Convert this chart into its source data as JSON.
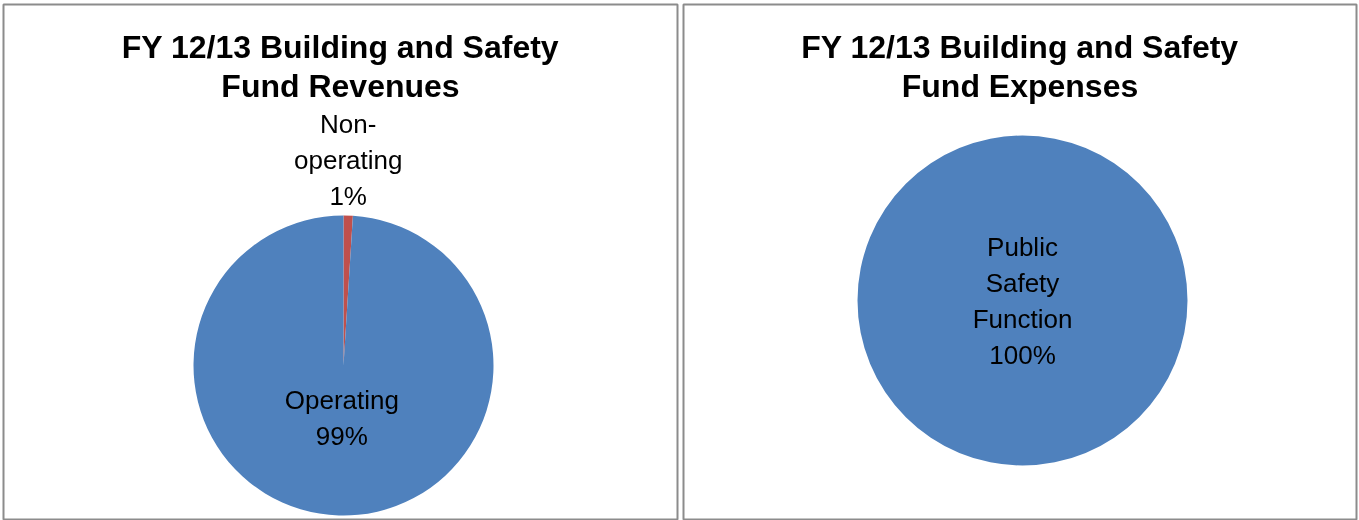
{
  "chart_data": [
    {
      "type": "pie",
      "title": "FY 12/13 Building and Safety Fund Revenues",
      "categories": [
        "Non-operating",
        "Operating"
      ],
      "values": [
        1,
        99
      ],
      "value_labels": [
        "1%",
        "99%"
      ],
      "colors": [
        "#c0504d",
        "#4f81bd"
      ]
    },
    {
      "type": "pie",
      "title": "FY 12/13 Building and Safety Fund Expenses",
      "categories": [
        "Public Safety Function"
      ],
      "values": [
        100
      ],
      "value_labels": [
        "100%"
      ],
      "colors": [
        "#4f81bd"
      ]
    }
  ]
}
